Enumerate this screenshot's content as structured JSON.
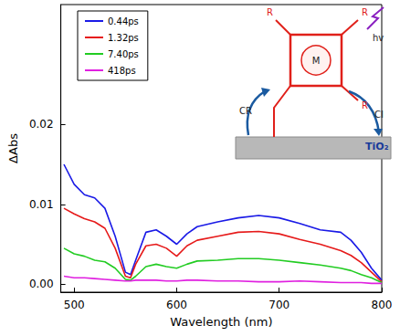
{
  "chart_data": {
    "type": "line",
    "x_label": "Wavelength (nm)",
    "y_label": "ΔAbs",
    "x": [
      490,
      500,
      510,
      520,
      530,
      540,
      550,
      555,
      560,
      570,
      580,
      590,
      600,
      610,
      620,
      640,
      660,
      680,
      700,
      720,
      740,
      760,
      770,
      780,
      790,
      800
    ],
    "series": [
      {
        "name": "0.44ps",
        "color": "#1a1ae6",
        "values": [
          0.015,
          0.0125,
          0.0112,
          0.0108,
          0.0095,
          0.006,
          0.0015,
          0.0012,
          0.003,
          0.0065,
          0.0068,
          0.006,
          0.005,
          0.0063,
          0.0072,
          0.0078,
          0.0083,
          0.0086,
          0.0083,
          0.0076,
          0.0068,
          0.0065,
          0.0055,
          0.004,
          0.002,
          0.0005
        ]
      },
      {
        "name": "1.32ps",
        "color": "#e61a1a",
        "values": [
          0.0095,
          0.0088,
          0.0082,
          0.0078,
          0.007,
          0.0045,
          0.001,
          0.0008,
          0.0025,
          0.0048,
          0.005,
          0.0045,
          0.0035,
          0.0048,
          0.0055,
          0.006,
          0.0065,
          0.0066,
          0.0063,
          0.0056,
          0.005,
          0.0042,
          0.0036,
          0.0027,
          0.0015,
          0.0003
        ]
      },
      {
        "name": "7.40ps",
        "color": "#22cc22",
        "values": [
          0.0045,
          0.0038,
          0.0035,
          0.003,
          0.0028,
          0.002,
          0.0006,
          0.0005,
          0.001,
          0.0022,
          0.0025,
          0.0022,
          0.002,
          0.0025,
          0.0029,
          0.003,
          0.0032,
          0.0032,
          0.003,
          0.0027,
          0.0024,
          0.002,
          0.0017,
          0.0012,
          0.0008,
          0.0002
        ]
      },
      {
        "name": "418ps",
        "color": "#e020e0",
        "values": [
          0.001,
          0.0008,
          0.0008,
          0.0007,
          0.0006,
          0.0005,
          0.0004,
          0.0004,
          0.0005,
          0.0005,
          0.0005,
          0.0004,
          0.0004,
          0.0005,
          0.0005,
          0.0004,
          0.0004,
          0.0003,
          0.0003,
          0.0004,
          0.0003,
          0.0002,
          0.0002,
          0.0002,
          0.0001,
          0.0001
        ]
      }
    ],
    "xlim": [
      487,
      800
    ],
    "xticks": [
      500,
      600,
      700,
      800
    ],
    "ylim": [
      -0.001,
      0.035
    ],
    "yticks": [
      {
        "value": 0,
        "label": "0.00"
      },
      {
        "value": 0.01,
        "label": "0.01"
      },
      {
        "value": 0.02,
        "label": "0.02"
      }
    ],
    "grid": false,
    "legend": "upper left",
    "marker": "none",
    "line_style": "solid",
    "annotations": [
      "hv",
      "CR",
      "CI",
      "TiO₂",
      "R",
      "M"
    ]
  }
}
